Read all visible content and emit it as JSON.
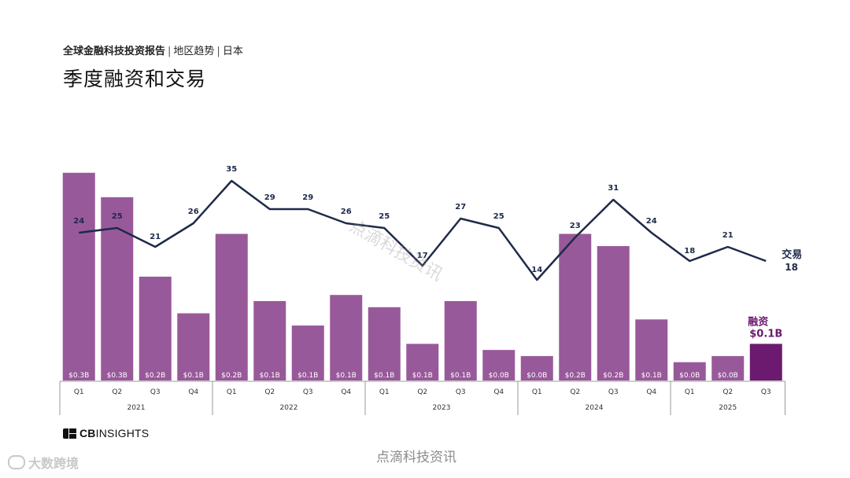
{
  "header": {
    "report": "全球金融科技投资报告",
    "sep1": "|",
    "region": "地区趋势",
    "sep2": "|",
    "country": "日本",
    "title": "季度融资和交易"
  },
  "chart_data": {
    "type": "bar",
    "categories": [
      "2021 Q1",
      "2021 Q2",
      "2021 Q3",
      "2021 Q4",
      "2022 Q1",
      "2022 Q2",
      "2022 Q3",
      "2022 Q4",
      "2023 Q1",
      "2023 Q2",
      "2023 Q3",
      "2023 Q4",
      "2024 Q1",
      "2024 Q2",
      "2024 Q3",
      "2024 Q4",
      "2025 Q1",
      "2025 Q2",
      "2025 Q3"
    ],
    "quarter_labels": [
      "Q1",
      "Q2",
      "Q3",
      "Q4",
      "Q1",
      "Q2",
      "Q3",
      "Q4",
      "Q1",
      "Q2",
      "Q3",
      "Q4",
      "Q1",
      "Q2",
      "Q3",
      "Q4",
      "Q1",
      "Q2",
      "Q3"
    ],
    "years": [
      {
        "label": "2021",
        "quarters": 4
      },
      {
        "label": "2022",
        "quarters": 4
      },
      {
        "label": "2023",
        "quarters": 4
      },
      {
        "label": "2024",
        "quarters": 4
      },
      {
        "label": "2025",
        "quarters": 3
      }
    ],
    "series": [
      {
        "name": "融资",
        "kind": "bar",
        "unit": "$B",
        "values": [
          0.34,
          0.3,
          0.17,
          0.11,
          0.24,
          0.13,
          0.09,
          0.14,
          0.12,
          0.06,
          0.13,
          0.05,
          0.04,
          0.24,
          0.22,
          0.1,
          0.03,
          0.04,
          0.06
        ],
        "labels": [
          "$0.3B",
          "$0.3B",
          "$0.2B",
          "$0.1B",
          "$0.2B",
          "$0.1B",
          "$0.1B",
          "$0.1B",
          "$0.1B",
          "$0.1B",
          "$0.1B",
          "$0.0B",
          "$0.0B",
          "$0.2B",
          "$0.2B",
          "$0.1B",
          "$0.0B",
          "$0.0B",
          ""
        ],
        "latest_label": "$0.1B"
      },
      {
        "name": "交易",
        "kind": "line",
        "values": [
          24,
          25,
          21,
          26,
          35,
          29,
          29,
          26,
          25,
          17,
          27,
          25,
          14,
          23,
          31,
          24,
          18,
          21,
          18
        ],
        "latest_label": "18"
      }
    ],
    "colors": {
      "bar": "#98599a",
      "bar_latest": "#6c1a70",
      "line": "#1e2a4a",
      "bar_label": "#ffffff",
      "axis": "#999999"
    },
    "ylim_funding": [
      0,
      0.35
    ],
    "ylim_deals": [
      0,
      40
    ]
  },
  "logo": {
    "brand_bold": "CB",
    "brand": "INSIGHTS"
  },
  "watermarks": {
    "diagonal": "点滴科技资讯",
    "bottom": "点滴科技资讯",
    "corner": "大数跨境"
  }
}
